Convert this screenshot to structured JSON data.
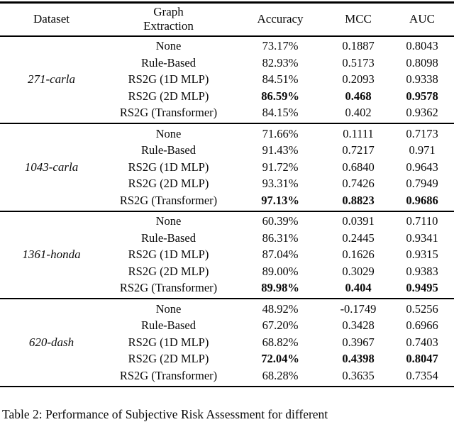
{
  "header": {
    "dataset": "Dataset",
    "graph_extraction": "Graph Extraction",
    "accuracy": "Accuracy",
    "mcc": "MCC",
    "auc": "AUC"
  },
  "table": {
    "groups": [
      {
        "dataset": "271-carla",
        "rows": [
          {
            "method": "None",
            "accuracy": "73.17%",
            "mcc": "0.1887",
            "auc": "0.8043",
            "bold": false
          },
          {
            "method": "Rule-Based",
            "accuracy": "82.93%",
            "mcc": "0.5173",
            "auc": "0.8098",
            "bold": false
          },
          {
            "method": "RS2G (1D MLP)",
            "accuracy": "84.51%",
            "mcc": "0.2093",
            "auc": "0.9338",
            "bold": false
          },
          {
            "method": "RS2G (2D MLP)",
            "accuracy": "86.59%",
            "mcc": "0.468",
            "auc": "0.9578",
            "bold": true
          },
          {
            "method": "RS2G (Transformer)",
            "accuracy": "84.15%",
            "mcc": "0.402",
            "auc": "0.9362",
            "bold": false
          }
        ]
      },
      {
        "dataset": "1043-carla",
        "rows": [
          {
            "method": "None",
            "accuracy": "71.66%",
            "mcc": "0.1111",
            "auc": "0.7173",
            "bold": false
          },
          {
            "method": "Rule-Based",
            "accuracy": "91.43%",
            "mcc": "0.7217",
            "auc": "0.971",
            "bold": false
          },
          {
            "method": "RS2G (1D MLP)",
            "accuracy": "91.72%",
            "mcc": "0.6840",
            "auc": "0.9643",
            "bold": false
          },
          {
            "method": "RS2G (2D MLP)",
            "accuracy": "93.31%",
            "mcc": "0.7426",
            "auc": "0.7949",
            "bold": false
          },
          {
            "method": "RS2G (Transformer)",
            "accuracy": "97.13%",
            "mcc": "0.8823",
            "auc": "0.9686",
            "bold": true
          }
        ]
      },
      {
        "dataset": "1361-honda",
        "rows": [
          {
            "method": "None",
            "accuracy": "60.39%",
            "mcc": "0.0391",
            "auc": "0.7110",
            "bold": false
          },
          {
            "method": "Rule-Based",
            "accuracy": "86.31%",
            "mcc": "0.2445",
            "auc": "0.9341",
            "bold": false
          },
          {
            "method": "RS2G (1D MLP)",
            "accuracy": "87.04%",
            "mcc": "0.1626",
            "auc": "0.9315",
            "bold": false
          },
          {
            "method": "RS2G (2D MLP)",
            "accuracy": "89.00%",
            "mcc": "0.3029",
            "auc": "0.9383",
            "bold": false
          },
          {
            "method": "RS2G (Transformer)",
            "accuracy": "89.98%",
            "mcc": "0.404",
            "auc": "0.9495",
            "bold": true
          }
        ]
      },
      {
        "dataset": "620-dash",
        "rows": [
          {
            "method": "None",
            "accuracy": "48.92%",
            "mcc": "-0.1749",
            "auc": "0.5256",
            "bold": false
          },
          {
            "method": "Rule-Based",
            "accuracy": "67.20%",
            "mcc": "0.3428",
            "auc": "0.6966",
            "bold": false
          },
          {
            "method": "RS2G (1D MLP)",
            "accuracy": "68.82%",
            "mcc": "0.3967",
            "auc": "0.7403",
            "bold": false
          },
          {
            "method": "RS2G (2D MLP)",
            "accuracy": "72.04%",
            "mcc": "0.4398",
            "auc": "0.8047",
            "bold": true
          },
          {
            "method": "RS2G (Transformer)",
            "accuracy": "68.28%",
            "mcc": "0.3635",
            "auc": "0.7354",
            "bold": false
          }
        ]
      }
    ]
  },
  "caption": "Table 2: Performance of Subjective Risk Assessment for different"
}
